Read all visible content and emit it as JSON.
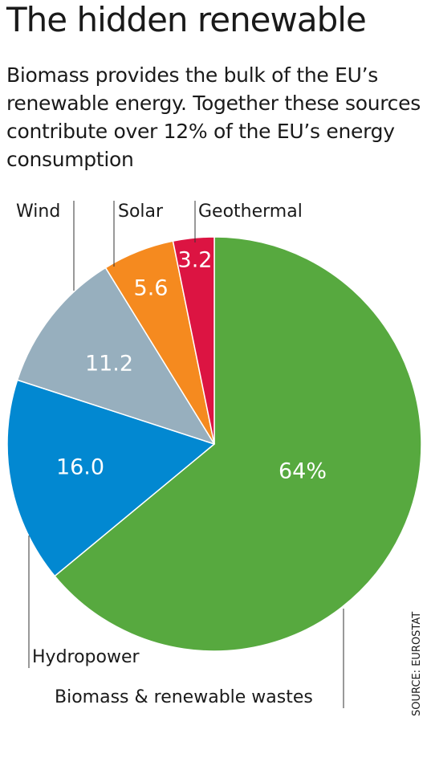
{
  "header": {
    "title": "The hidden renewable",
    "subtitle": "Biomass provides the bulk of the EU’s renewable energy. Together these sources contribute over 12% of the EU’s energy consumption"
  },
  "source": "SOURCE: EUROSTAT",
  "chart_data": {
    "type": "pie",
    "slices": [
      {
        "name": "Biomass & renewable wastes",
        "value": 64,
        "label": "64%",
        "color": "#57a93f"
      },
      {
        "name": "Hydropower",
        "value": 16.0,
        "label": "16.0",
        "color": "#0288d1"
      },
      {
        "name": "Wind",
        "value": 11.2,
        "label": "11.2",
        "color": "#97afbe"
      },
      {
        "name": "Solar",
        "value": 5.6,
        "label": "5.6",
        "color": "#f58a1f"
      },
      {
        "name": "Geothermal",
        "value": 3.2,
        "label": "3.2",
        "color": "#dc1442"
      }
    ]
  }
}
